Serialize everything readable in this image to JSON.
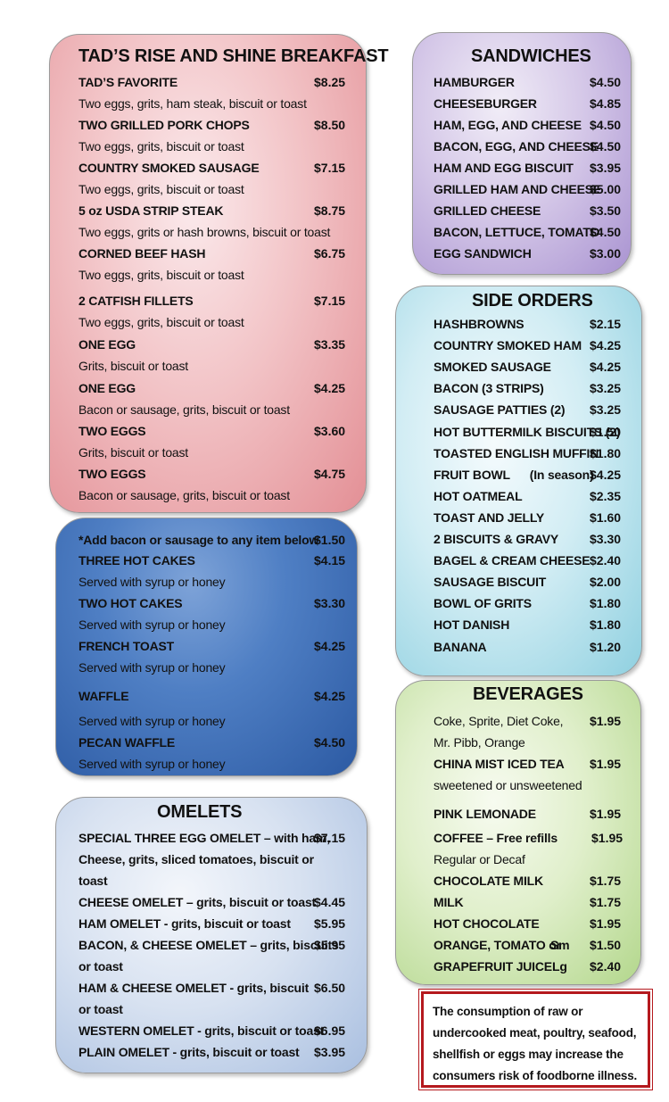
{
  "breakfast": {
    "title": "TAD’S RISE AND SHINE BREAKFAST",
    "items": [
      {
        "name": "TAD’S FAVORITE",
        "price": "$8.25",
        "desc": "Two eggs, grits, ham steak, biscuit or toast"
      },
      {
        "name": "TWO GRILLED PORK CHOPS",
        "price": "$8.50",
        "desc": "Two eggs, grits, biscuit or toast"
      },
      {
        "name": "COUNTRY SMOKED SAUSAGE",
        "price": "$7.15",
        "desc": "Two eggs, grits, biscuit or toast"
      },
      {
        "name": "5 oz USDA STRIP STEAK",
        "price": "$8.75",
        "desc": "Two eggs, grits or hash browns, biscuit or toast"
      },
      {
        "name": "CORNED BEEF HASH",
        "price": "$6.75",
        "desc": "Two eggs, grits, biscuit or toast"
      },
      {
        "name": "2 CATFISH FILLETS",
        "price": "$7.15",
        "desc": "Two eggs, grits, biscuit or toast"
      },
      {
        "name": "ONE EGG",
        "price": "$3.35",
        "desc": "Grits, biscuit or toast"
      },
      {
        "name": "ONE EGG",
        "price": "$4.25",
        "desc": "Bacon or sausage, grits, biscuit or toast"
      },
      {
        "name": "TWO EGGS",
        "price": "$3.60",
        "desc": "Grits, biscuit or toast"
      },
      {
        "name": "TWO EGGS",
        "price": "$4.75",
        "desc": "Bacon or sausage, grits, biscuit or toast"
      }
    ]
  },
  "hotcakes": {
    "note": "*Add bacon or sausage to any item below",
    "note_price": "$1.50",
    "items": [
      {
        "name": "THREE HOT CAKES",
        "price": "$4.15",
        "desc": "Served with syrup or honey"
      },
      {
        "name": "TWO HOT CAKES",
        "price": "$3.30",
        "desc": "Served with syrup or honey"
      },
      {
        "name": "FRENCH TOAST",
        "price": "$4.25",
        "desc": "Served with syrup or honey"
      },
      {
        "name": "WAFFLE",
        "price": "$4.25",
        "desc": "Served with syrup or honey"
      },
      {
        "name": "PECAN WAFFLE",
        "price": "$4.50",
        "desc": "Served with syrup or honey"
      }
    ]
  },
  "omelets": {
    "title": "OMELETS",
    "items": [
      {
        "lines": [
          "SPECIAL THREE EGG OMELET – with ham,",
          "Cheese, grits, sliced tomatoes, biscuit or",
          "toast"
        ],
        "price": "$7.15"
      },
      {
        "lines": [
          "CHEESE OMELET – grits, biscuit or toast"
        ],
        "price": "$4.45"
      },
      {
        "lines": [
          "HAM OMELET - grits, biscuit or toast"
        ],
        "price": "$5.95"
      },
      {
        "lines": [
          "BACON, & CHEESE OMELET – grits, biscuits",
          "or toast"
        ],
        "price": "$5.95"
      },
      {
        "lines": [
          "HAM & CHEESE OMELET - grits, biscuit",
          "or toast"
        ],
        "price": "$6.50"
      },
      {
        "lines": [
          "WESTERN OMELET - grits, biscuit or toast"
        ],
        "price": "$6.95"
      },
      {
        "lines": [
          "PLAIN OMELET - grits, biscuit or toast"
        ],
        "price": "$3.95"
      }
    ]
  },
  "sandwiches": {
    "title": "SANDWICHES",
    "items": [
      {
        "name": "HAMBURGER",
        "price": "$4.50"
      },
      {
        "name": "CHEESEBURGER",
        "price": "$4.85"
      },
      {
        "name": "HAM, EGG, AND CHEESE",
        "price": "$4.50"
      },
      {
        "name": "BACON, EGG, AND CHEESE",
        "price": "$4.50"
      },
      {
        "name": "HAM AND EGG BISCUIT",
        "price": "$3.95"
      },
      {
        "name": "GRILLED HAM AND CHEESE",
        "price": "$5.00"
      },
      {
        "name": "GRILLED CHEESE",
        "price": "$3.50"
      },
      {
        "name": "BACON, LETTUCE, TOMATO",
        "price": "$4.50"
      },
      {
        "name": "EGG SANDWICH",
        "price": "$3.00"
      }
    ]
  },
  "sides": {
    "title": "SIDE ORDERS",
    "items": [
      {
        "name": "HASHBROWNS",
        "price": "$2.15"
      },
      {
        "name": "COUNTRY SMOKED HAM",
        "price": "$4.25"
      },
      {
        "name": "SMOKED SAUSAGE",
        "price": "$4.25"
      },
      {
        "name": "BACON (3 STRIPS)",
        "price": "$3.25"
      },
      {
        "name": "SAUSAGE PATTIES (2)",
        "price": "$3.25"
      },
      {
        "name": "HOT BUTTERMILK BISCUITS (2)",
        "price": "$1.50"
      },
      {
        "name": "TOASTED ENGLISH MUFFIN",
        "price": "$1.80"
      },
      {
        "name": "FRUIT BOWL      (In season)",
        "price": "$4.25"
      },
      {
        "name": "HOT OATMEAL",
        "price": "$2.35"
      },
      {
        "name": "TOAST AND JELLY",
        "price": "$1.60"
      },
      {
        "name": "2 BISCUITS & GRAVY",
        "price": "$3.30"
      },
      {
        "name": "BAGEL & CREAM CHEESE",
        "price": "$2.40"
      },
      {
        "name": "SAUSAGE BISCUIT",
        "price": "$2.00"
      },
      {
        "name": "BOWL OF GRITS",
        "price": "$1.80"
      },
      {
        "name": "HOT DANISH",
        "price": "$1.80"
      },
      {
        "name": "BANANA",
        "price": "$1.20"
      }
    ]
  },
  "beverages": {
    "title": "BEVERAGES",
    "soda_line1": "Coke, Sprite, Diet Coke,",
    "soda_line2": "Mr. Pibb, Orange",
    "soda_price": "$1.95",
    "tea_line1": "CHINA MIST ICED TEA",
    "tea_line2": "sweetened or unsweetened",
    "tea_price": "$1.95",
    "lemonade": "PINK LEMONADE",
    "lemonade_price": "$1.95",
    "coffee_line1": "COFFEE – Free refills",
    "coffee_line2": "Regular or Decaf",
    "coffee_price": "$1.95",
    "choc_milk": "CHOCOLATE MILK",
    "choc_milk_price": "$1.75",
    "milk": "MILK",
    "milk_price": "$1.75",
    "hot_choc": "HOT CHOCOLATE",
    "hot_choc_price": "$1.95",
    "juice_line1": "ORANGE, TOMATO or",
    "juice_line2": "GRAPEFRUIT JUICE",
    "size_sm": "Sm",
    "size_lg": "Lg",
    "juice_sm_price": "$1.50",
    "juice_lg_price": "$2.40"
  },
  "notice": {
    "text": "The consumption of raw or undercooked meat, poultry, seafood, shellfish or eggs may increase the consumers risk of foodborne illness."
  }
}
